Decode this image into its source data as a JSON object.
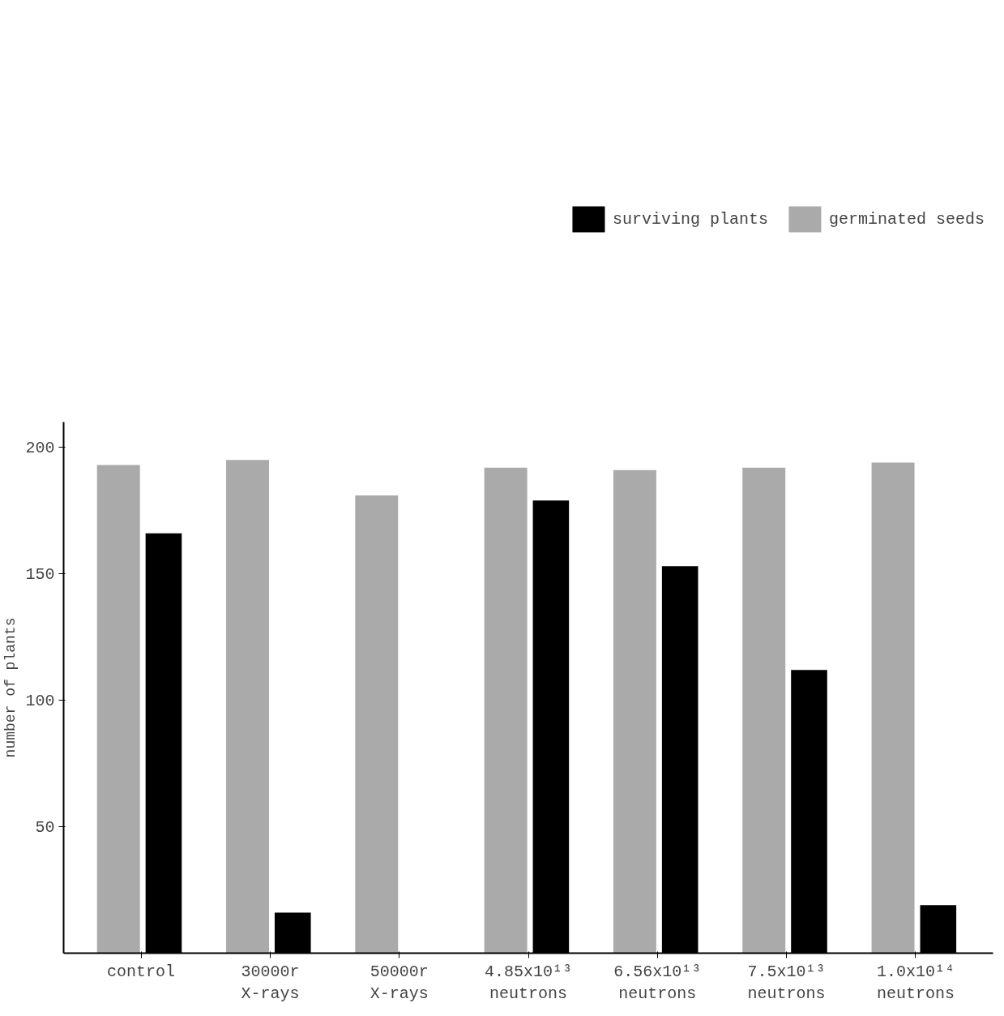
{
  "chart_data": {
    "type": "bar",
    "ylabel": "number of plants",
    "categories": [
      "control",
      "30000r\nX-rays",
      "50000r\nX-rays",
      "4.85x10¹³\nneutrons",
      "6.56x10¹³\nneutrons",
      "7.5x10¹³\nneutrons",
      "1.0x10¹⁴\nneutrons"
    ],
    "series": [
      {
        "name": "germinated seeds",
        "color": "#aaaaaa",
        "values": [
          193,
          195,
          181,
          192,
          191,
          192,
          194
        ]
      },
      {
        "name": "surviving plants",
        "color": "#000000",
        "values": [
          166,
          16,
          0,
          179,
          153,
          112,
          19
        ]
      }
    ],
    "ylim": [
      0,
      210
    ],
    "yticks": [
      50,
      100,
      150,
      200
    ],
    "grid": false,
    "legend": "top right"
  }
}
